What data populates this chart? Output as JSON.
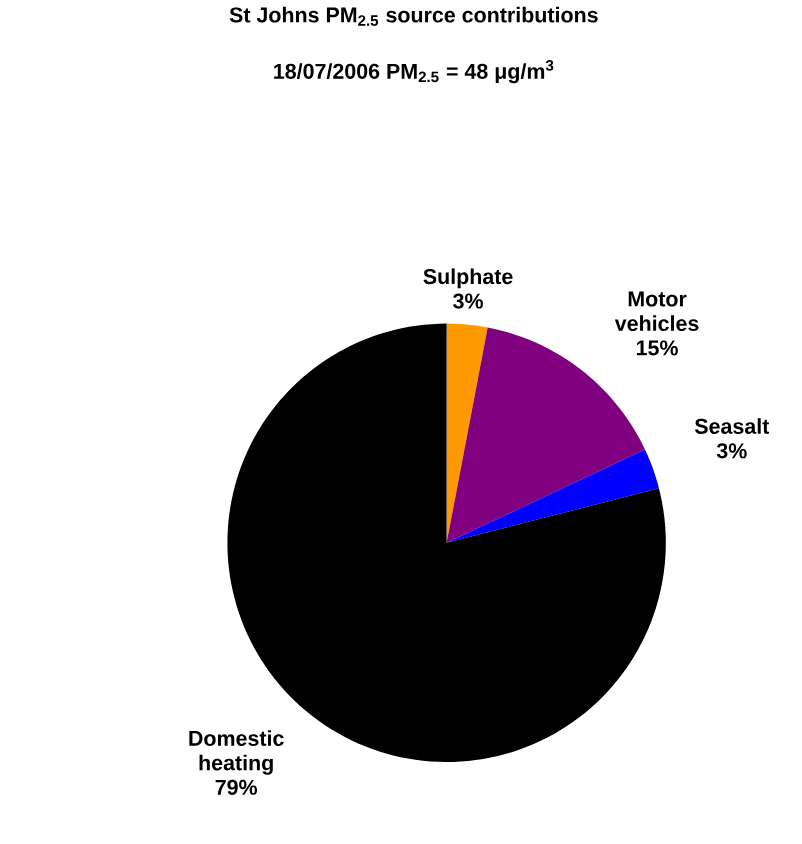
{
  "chart_data": {
    "type": "pie",
    "title": "St Johns PM$_{2.5}$ source contributions",
    "subtitle": "18/07/2006 PM$_{2.5}$ = 48 μg/m$^{3}$",
    "categories": [
      "Sulphate",
      "Motor vehicles",
      "Seasalt",
      "Domestic heating"
    ],
    "values": [
      3,
      15,
      3,
      79
    ],
    "colors": [
      "#ff9900",
      "#800080",
      "#0000ff",
      "#000000"
    ],
    "value_labels": [
      "3%",
      "15%",
      "3%",
      "79%"
    ]
  }
}
